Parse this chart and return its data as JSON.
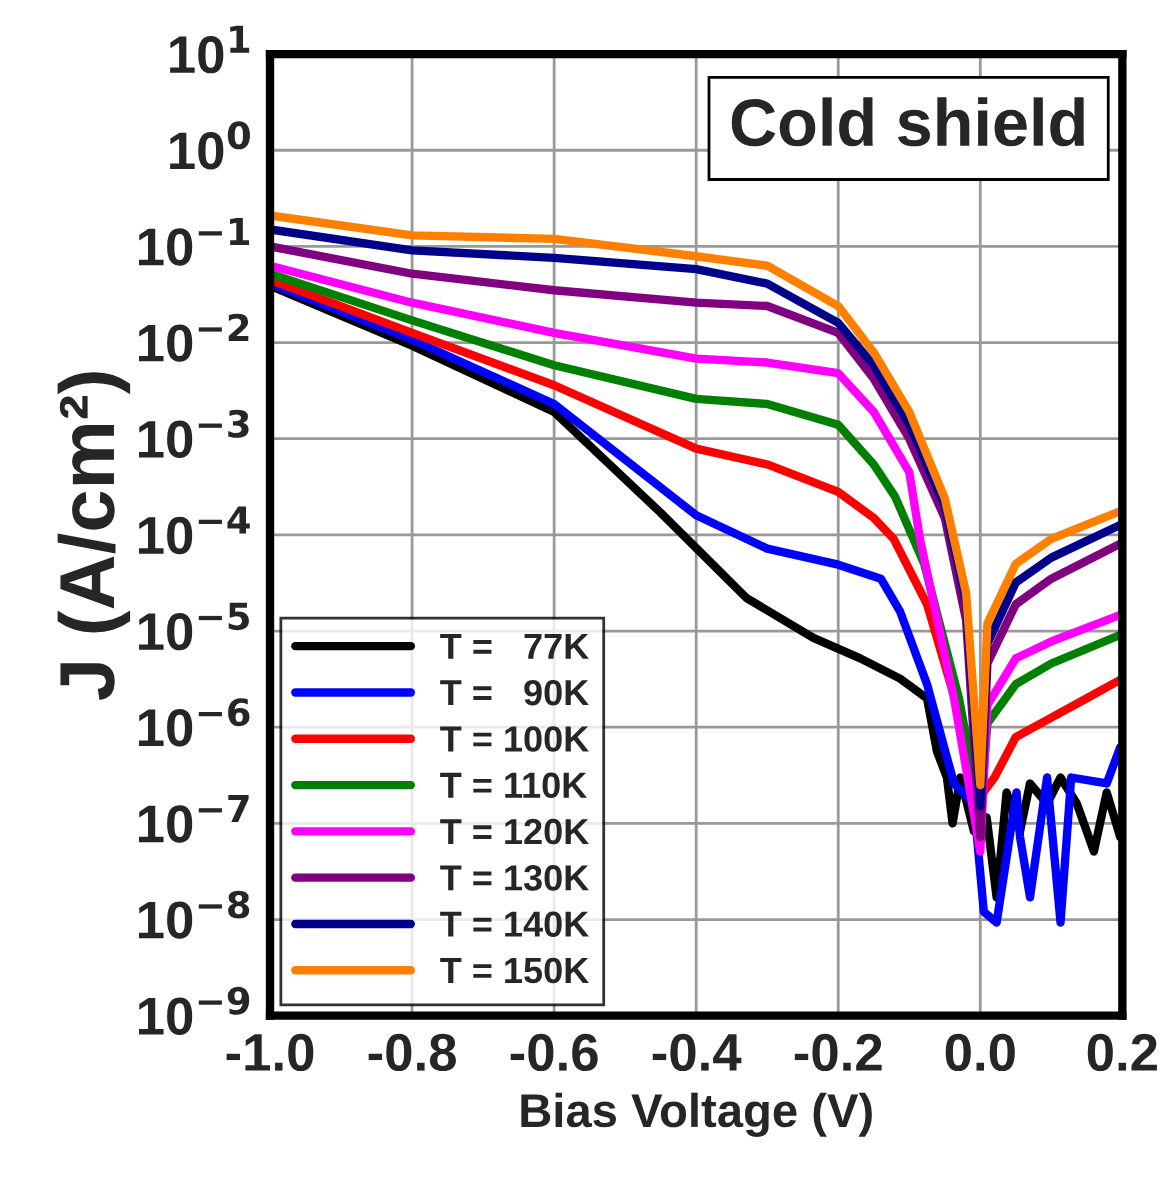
{
  "chart_data": {
    "type": "line",
    "xlabel": "Bias Voltage (V)",
    "ylabel": "J (A/cm²)",
    "log": "y",
    "annotations": [
      "Cold shield"
    ],
    "xlim": [
      -1.0,
      0.2
    ],
    "xticks": [
      {
        "value": -1.0,
        "label": "-1.0"
      },
      {
        "value": -0.8,
        "label": "-0.8"
      },
      {
        "value": -0.6,
        "label": "-0.6"
      },
      {
        "value": -0.4,
        "label": "-0.4"
      },
      {
        "value": -0.2,
        "label": "-0.2"
      },
      {
        "value": 0.0,
        "label": "0.0"
      },
      {
        "value": 0.2,
        "label": "0.2"
      }
    ],
    "ylim": [
      1e-09,
      10
    ],
    "yticks": [
      {
        "value": 1e-09,
        "label": "10$^{−9}$"
      },
      {
        "value": 1e-08,
        "label": "10$^{−8}$"
      },
      {
        "value": 1e-07,
        "label": "10$^{−7}$"
      },
      {
        "value": 1e-06,
        "label": "10$^{−6}$"
      },
      {
        "value": 1e-05,
        "label": "10$^{−5}$"
      },
      {
        "value": 0.0001,
        "label": "10$^{−4}$"
      },
      {
        "value": 0.001,
        "label": "10$^{−3}$"
      },
      {
        "value": 0.01,
        "label": "10$^{−2}$"
      },
      {
        "value": 0.1,
        "label": "10$^{−1}$"
      },
      {
        "value": 1,
        "label": "10$^{0}$"
      },
      {
        "value": 10,
        "label": "10$^{1}$"
      }
    ],
    "grid": true,
    "legend": "bottom left",
    "line_style": "solid",
    "marker": "none",
    "series": [
      {
        "name": "T =   77K",
        "color": "#000000",
        "x": [
          -1,
          -0.8,
          -0.6,
          -0.45,
          -0.394,
          -0.329,
          -0.235,
          -0.169,
          -0.113,
          -0.075,
          -0.061,
          -0.047,
          -0.039,
          -0.028,
          -0.009,
          0.009,
          0.023,
          0.037,
          0.056,
          0.07,
          0.094,
          0.113,
          0.136,
          0.16,
          0.178,
          0.197
        ],
        "values": [
          0.039,
          0.0093,
          0.0019,
          0.00017,
          6.6e-05,
          2.2e-05,
          8.5e-06,
          5.2e-06,
          3.2e-06,
          2e-06,
          5.6e-07,
          3e-07,
          1e-07,
          3e-07,
          8.3e-08,
          1.15e-07,
          1.7e-08,
          2.1e-07,
          8.3e-08,
          2.6e-07,
          1.6e-07,
          3e-07,
          1.6e-07,
          5.1e-08,
          2.1e-07,
          7.2e-08
        ]
      },
      {
        "name": "T =   90K",
        "color": "#0000ff",
        "x": [
          -1,
          -0.8,
          -0.6,
          -0.4,
          -0.3,
          -0.2,
          -0.14,
          -0.113,
          -0.075,
          -0.037,
          -0.009,
          0.005,
          0.023,
          0.051,
          0.056,
          0.07,
          0.094,
          0.113,
          0.128,
          0.178,
          0.197
        ],
        "values": [
          0.041,
          0.0107,
          0.0023,
          0.00016,
          7.2e-05,
          4.9e-05,
          3.5e-05,
          1.6e-05,
          2.8e-06,
          2.6e-07,
          1.6e-07,
          1.2e-08,
          9.3e-09,
          2.1e-07,
          7.2e-08,
          1.7e-08,
          3e-07,
          9.3e-09,
          3e-07,
          2.6e-07,
          6.2e-07
        ]
      },
      {
        "name": "T = 100K",
        "color": "#ff0000",
        "x": [
          -1,
          -0.8,
          -0.6,
          -0.4,
          -0.3,
          -0.2,
          -0.15,
          -0.122,
          -0.075,
          -0.028,
          0,
          0.02,
          0.05,
          0.1,
          0.15,
          0.2
        ],
        "values": [
          0.045,
          0.0126,
          0.0036,
          0.00079,
          0.00054,
          0.00028,
          0.00015,
          9.1e-05,
          1.9e-05,
          1.26e-06,
          1.9e-07,
          3e-07,
          7.9e-07,
          1.26e-06,
          2e-06,
          3.2e-06
        ]
      },
      {
        "name": "T = 110K",
        "color": "#008000",
        "x": [
          -1,
          -0.8,
          -0.6,
          -0.4,
          -0.3,
          -0.2,
          -0.15,
          -0.12,
          -0.079,
          -0.03,
          0,
          0.01,
          0.05,
          0.1,
          0.2
        ],
        "values": [
          0.052,
          0.017,
          0.0058,
          0.0026,
          0.0023,
          0.0014,
          0.00054,
          0.00025,
          5e-05,
          2e-06,
          1.3e-07,
          1.1e-06,
          2.8e-06,
          4.6e-06,
          9.3e-06
        ]
      },
      {
        "name": "T = 120K",
        "color": "#ff00ff",
        "x": [
          -1,
          -0.8,
          -0.6,
          -0.4,
          -0.3,
          -0.2,
          -0.15,
          -0.1,
          -0.085,
          -0.037,
          0,
          0.01,
          0.05,
          0.1,
          0.2
        ],
        "values": [
          0.063,
          0.026,
          0.0126,
          0.0068,
          0.0062,
          0.0048,
          0.0019,
          0.00045,
          9.1e-05,
          2e-06,
          5.1e-08,
          1.7e-06,
          5.2e-06,
          7.8e-06,
          1.5e-05
        ]
      },
      {
        "name": "T = 130K",
        "color": "#800080",
        "x": [
          -1,
          -0.8,
          -0.6,
          -0.4,
          -0.3,
          -0.2,
          -0.15,
          -0.1,
          -0.05,
          -0.02,
          0,
          0.01,
          0.05,
          0.1,
          0.2
        ],
        "values": [
          0.1,
          0.052,
          0.035,
          0.026,
          0.024,
          0.0126,
          0.0042,
          0.001,
          0.00015,
          1.3e-05,
          7.2e-08,
          4.6e-06,
          1.9e-05,
          3.5e-05,
          8.3e-05
        ]
      },
      {
        "name": "T = 140K",
        "color": "#00008b",
        "x": [
          -1,
          -0.8,
          -0.6,
          -0.4,
          -0.3,
          -0.2,
          -0.15,
          -0.1,
          -0.05,
          -0.02,
          0,
          0.01,
          0.05,
          0.1,
          0.2
        ],
        "values": [
          0.15,
          0.091,
          0.076,
          0.058,
          0.041,
          0.016,
          0.0058,
          0.0014,
          0.0002,
          2e-05,
          1.5e-07,
          7.4e-06,
          3.2e-05,
          5.8e-05,
          0.00013
        ]
      },
      {
        "name": "T = 150K",
        "color": "#ff8000",
        "x": [
          -1,
          -0.8,
          -0.6,
          -0.4,
          -0.3,
          -0.2,
          -0.15,
          -0.1,
          -0.05,
          -0.02,
          0,
          0.01,
          0.05,
          0.1,
          0.2
        ],
        "values": [
          0.21,
          0.13,
          0.12,
          0.079,
          0.063,
          0.024,
          0.0079,
          0.0019,
          0.00024,
          2.5e-05,
          2.5e-07,
          1.2e-05,
          5e-05,
          9.1e-05,
          0.00018
        ]
      }
    ]
  }
}
